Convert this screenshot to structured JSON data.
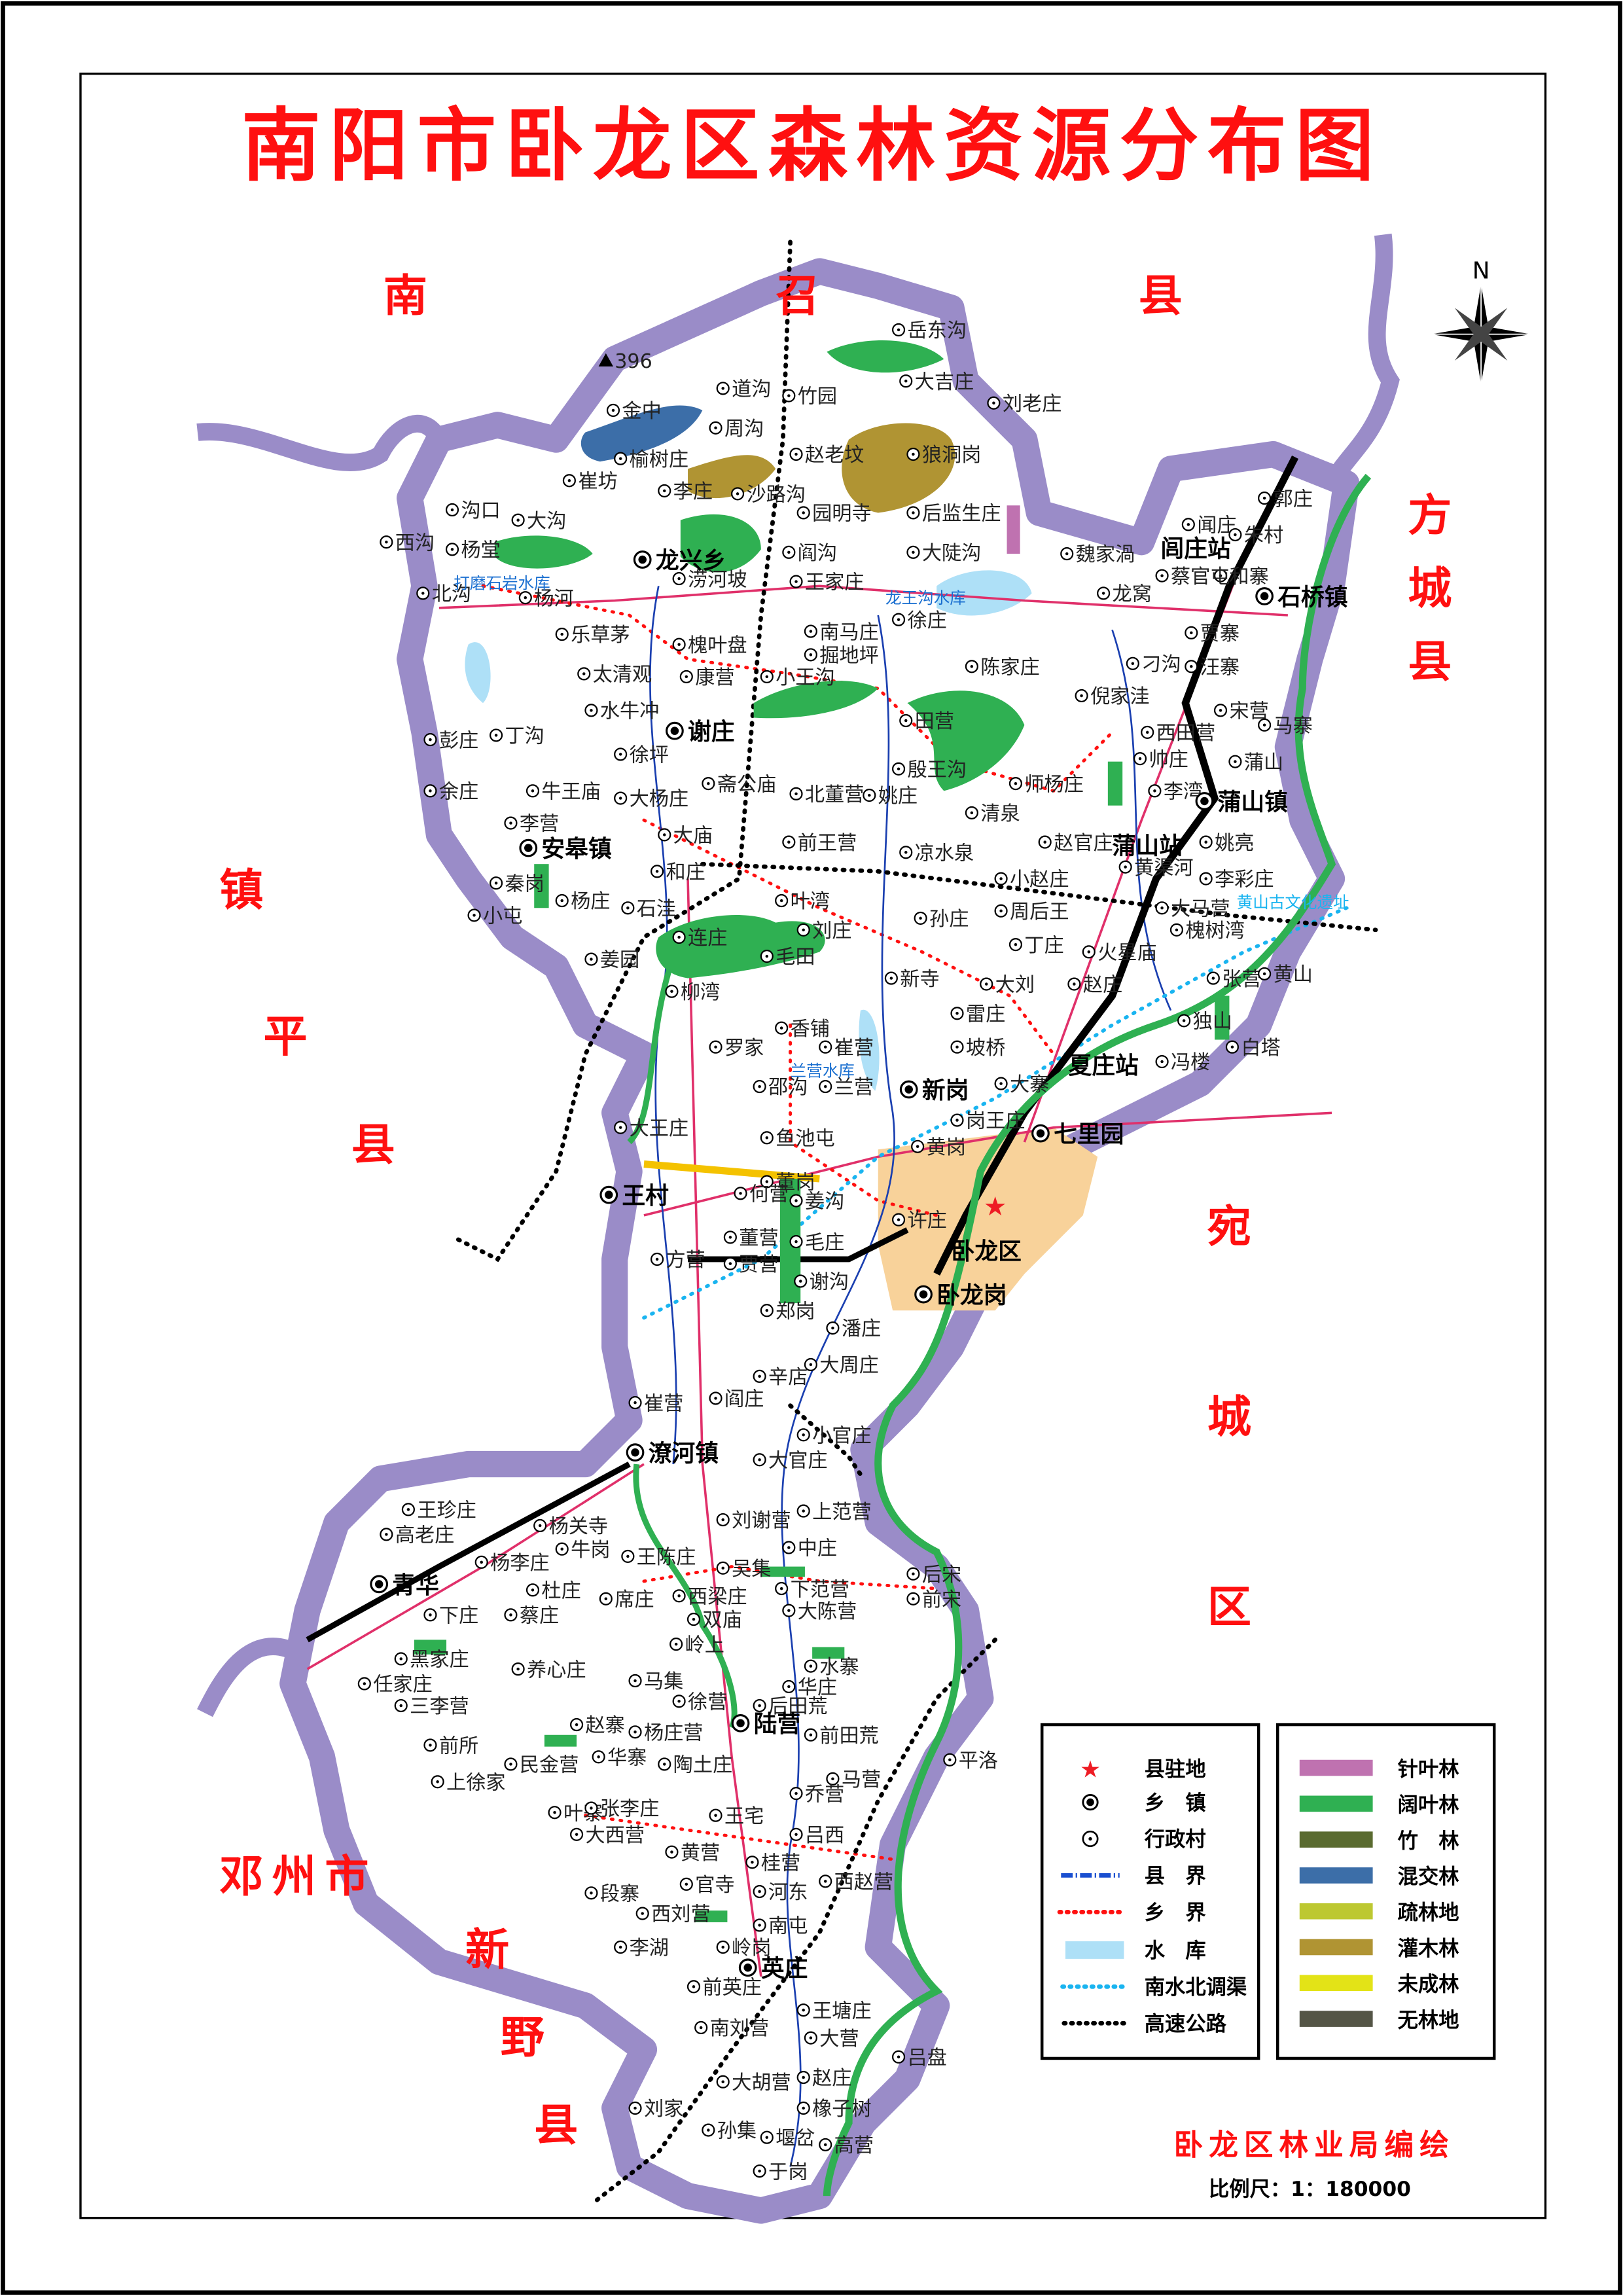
{
  "title": "南阳市卧龙区森林资源分布图",
  "neighbors": {
    "nanzhao": [
      "南",
      "召",
      "县"
    ],
    "fangcheng": [
      "方",
      "城",
      "县"
    ],
    "zhenping": [
      "镇",
      "平",
      "县"
    ],
    "wancheng": [
      "宛",
      "城",
      "区"
    ],
    "dengzhou": "邓州市",
    "xinye": [
      "新",
      "野",
      "县"
    ]
  },
  "compass": {
    "north_label": "N"
  },
  "peak": {
    "label": "396"
  },
  "city_label": "卧龙区",
  "townships": [
    "龙兴乡",
    "谢庄",
    "安皋镇",
    "蒲山镇",
    "石桥镇",
    "潦河镇",
    "青华",
    "陆营",
    "英庄",
    "王村",
    "新岗",
    "卧龙岗",
    "七里园"
  ],
  "stations": [
    "闾庄站",
    "蒲山站",
    "夏庄站"
  ],
  "villages": [
    "岳东沟",
    "大吉庄",
    "刘老庄",
    "道沟",
    "竹园",
    "金中",
    "周沟",
    "榆树庄",
    "赵老坟",
    "狼洞岗",
    "崔坊",
    "李庄",
    "沙路沟",
    "沟口",
    "大沟",
    "园明寺",
    "后监生庄",
    "西沟",
    "杨堂",
    "阎沟",
    "大陡沟",
    "魏家渦",
    "涝河坡",
    "王家庄",
    "北沟",
    "杨河",
    "龙窝",
    "徐庄",
    "乐草茅",
    "南马庄",
    "槐叶盘",
    "掘地坪",
    "太清观",
    "康营",
    "小王沟",
    "陈家庄",
    "田营",
    "殷王沟",
    "姚庄",
    "师杨庄",
    "清泉",
    "北董营",
    "前王营",
    "大庙",
    "和庄",
    "叶湾",
    "刘庄",
    "孙庄",
    "周后王",
    "毛田",
    "连庄",
    "柳湾",
    "丁庄",
    "新寺",
    "大刘",
    "雷庄",
    "坡桥",
    "崔营",
    "香铺",
    "罗家",
    "邵沟",
    "兰营",
    "鱼池屯",
    "大王庄",
    "董岗",
    "姜沟",
    "毛庄",
    "谢沟",
    "许庄",
    "黄岗",
    "岗王庄",
    "大寨",
    "赵庄",
    "火星庙",
    "独山",
    "冯楼",
    "白塔",
    "张营",
    "黄山",
    "槐树湾",
    "李彩庄",
    "大马营",
    "姚亮",
    "黄渠河",
    "赵官庄",
    "小赵庄",
    "凉水泉",
    "西田营",
    "帅庄",
    "李湾",
    "刁沟",
    "倪家洼",
    "宋营",
    "马寨",
    "蒲山",
    "汪寨",
    "贾寨",
    "和寨",
    "闻庄",
    "朱村",
    "郭庄",
    "蔡官屯",
    "彭庄",
    "丁沟",
    "余庄",
    "牛王庙",
    "大杨庄",
    "斋公庙",
    "李营",
    "秦岗",
    "小屯",
    "杨庄",
    "石洼",
    "姜园",
    "水牛冲",
    "徐坪",
    "何营",
    "董营",
    "贾营",
    "方营",
    "郑岗",
    "潘庄",
    "辛店",
    "大周庄",
    "崔营",
    "阎庄",
    "小官庄",
    "大官庄",
    "上范营",
    "刘谢营",
    "中庄",
    "杨关寺",
    "王珍庄",
    "高老庄",
    "杨李庄",
    "杜庄",
    "蔡庄",
    "下庄",
    "黑家庄",
    "任家庄",
    "三李营",
    "养心庄",
    "前所",
    "上徐家",
    "民金营",
    "叶寨",
    "大西营",
    "段寨",
    "李湖",
    "西刘营",
    "官寺",
    "岭岗",
    "前英庄",
    "南刘营",
    "王塘庄",
    "大营",
    "大胡营",
    "赵庄",
    "橡子树",
    "刘家",
    "孙集",
    "堰岔",
    "高营",
    "于岗",
    "吕盘",
    "马营",
    "前田荒",
    "水寨",
    "平洛",
    "乔营",
    "吕西",
    "桂营",
    "西赵营",
    "河东",
    "南屯",
    "黄营",
    "王宅",
    "陶土庄",
    "张李庄",
    "华寨",
    "赵寨",
    "杨庄营",
    "徐营",
    "马集",
    "后田荒",
    "华庄",
    "岭上",
    "双庙",
    "西梁庄",
    "席庄",
    "王陈庄",
    "牛岗",
    "吴集",
    "下范营",
    "大陈营",
    "后宋",
    "前宋"
  ],
  "water_labels": [
    "打磨石岩水库",
    "龙王沟水库",
    "兰营水库",
    "黄山古文化遗址"
  ],
  "legend_symbols": [
    {
      "label": "县驻地",
      "icon": "red-star",
      "color": "#ee1c24"
    },
    {
      "label": "乡　镇",
      "icon": "double-circle-dot"
    },
    {
      "label": "行政村",
      "icon": "circle-dot"
    },
    {
      "label": "县　界",
      "icon": "dash-dot-line",
      "color": "#1a4fd0"
    },
    {
      "label": "乡　界",
      "icon": "red-dotted-line",
      "color": "#ff1010"
    },
    {
      "label": "水　库",
      "icon": "swatch",
      "color": "#aee0f7"
    },
    {
      "label": "南水北调渠",
      "icon": "cyan-dotted-line",
      "color": "#19b4f0"
    },
    {
      "label": "高速公路",
      "icon": "black-dotted-line",
      "color": "#000000"
    }
  ],
  "legend_forest": [
    {
      "label": "针叶林",
      "color": "#bf72b0"
    },
    {
      "label": "阔叶林",
      "color": "#2fb052"
    },
    {
      "label": "竹　林",
      "color": "#5a6b30"
    },
    {
      "label": "混交林",
      "color": "#3c6ea8"
    },
    {
      "label": "疏林地",
      "color": "#bdc831"
    },
    {
      "label": "灌木林",
      "color": "#b09433"
    },
    {
      "label": "未成林",
      "color": "#e3e317"
    },
    {
      "label": "无林地",
      "color": "#545546"
    }
  ],
  "credit": "卧龙区林业局编绘",
  "scale": "比例尺：1：180000",
  "colors": {
    "boundary_band": "#9a8cc8",
    "urban": "#f8d29a",
    "road": "#e0306a",
    "river": "#1a3fb0"
  }
}
